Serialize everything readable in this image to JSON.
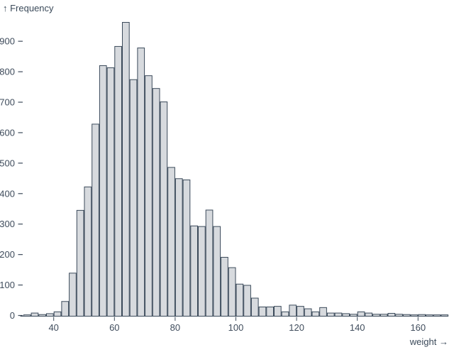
{
  "chart": {
    "y_axis_title": "↑ Frequency",
    "x_axis_title": "weight →"
  },
  "chart_data": {
    "type": "bar",
    "subtype": "histogram",
    "title": "",
    "xlabel": "weight",
    "ylabel": "Frequency",
    "grid": false,
    "legend_position": "none",
    "bin_start": 30,
    "bin_width": 2.5,
    "counts": [
      2,
      8,
      3,
      6,
      12,
      46,
      139,
      345,
      422,
      628,
      820,
      813,
      883,
      962,
      774,
      878,
      787,
      745,
      701,
      486,
      449,
      445,
      294,
      292,
      346,
      292,
      191,
      157,
      103,
      99,
      57,
      28,
      28,
      30,
      12,
      34,
      30,
      22,
      12,
      26,
      8,
      8,
      6,
      4,
      12,
      8,
      4,
      4,
      7,
      4,
      3,
      2,
      3,
      2,
      2,
      2
    ],
    "x_ticks": [
      40,
      60,
      80,
      100,
      120,
      140,
      160
    ],
    "y_ticks": [
      0,
      100,
      200,
      300,
      400,
      500,
      600,
      700,
      800,
      900
    ],
    "xlim": [
      29,
      170
    ],
    "ylim": [
      0,
      980
    ],
    "colors": {
      "background": "#ffffff",
      "bar_fill": "#d7dade",
      "bar_stroke": "#3b4a5a",
      "axis_text": "#3f4c5c",
      "tick_line": "#3f4c5c",
      "baseline": "#3b4a5a"
    }
  }
}
